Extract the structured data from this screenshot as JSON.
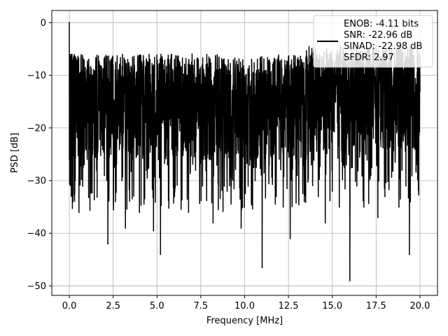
{
  "chart_data": {
    "type": "line",
    "title": "",
    "xlabel": "Frequency [MHz]",
    "ylabel": "PSD [dB]",
    "xlim": [
      -1.0,
      21.0
    ],
    "ylim": [
      -51.8,
      2.3
    ],
    "xticks": [
      0.0,
      2.5,
      5.0,
      7.5,
      10.0,
      12.5,
      15.0,
      17.5,
      20.0
    ],
    "xtick_labels": [
      "0.0",
      "2.5",
      "5.0",
      "7.5",
      "10.0",
      "12.5",
      "15.0",
      "17.5",
      "20.0"
    ],
    "yticks": [
      0,
      -10,
      -20,
      -30,
      -40,
      -50
    ],
    "ytick_labels": [
      "0",
      "−10",
      "−20",
      "−30",
      "−40",
      "−50"
    ],
    "grid": true,
    "legend": {
      "placement": "top-right",
      "lines": [
        "ENOB: -4.11 bits",
        "SNR: -22.96 dB",
        "SINAD: -22.98 dB",
        "SFDR: 2.97"
      ]
    },
    "series": [
      {
        "color": "#000000",
        "style": "noise-floor power spectral density trace",
        "x": [
          0.0,
          0.02,
          0.05,
          0.1,
          0.15,
          0.2,
          0.25,
          0.3,
          0.4,
          0.55,
          0.7,
          0.85,
          1.0,
          1.2,
          1.4,
          1.6,
          1.8,
          2.0,
          2.2,
          2.4,
          2.6,
          2.8,
          3.0,
          3.2,
          3.4,
          3.6,
          3.8,
          4.0,
          4.2,
          4.4,
          4.6,
          4.8,
          5.0,
          5.2,
          5.4,
          5.6,
          5.8,
          6.0,
          6.2,
          6.4,
          6.6,
          6.8,
          7.0,
          7.2,
          7.4,
          7.6,
          7.8,
          8.0,
          8.2,
          8.4,
          8.6,
          8.8,
          9.0,
          9.2,
          9.4,
          9.6,
          9.8,
          10.0,
          10.2,
          10.4,
          10.6,
          10.8,
          11.0,
          11.2,
          11.4,
          11.6,
          11.8,
          12.0,
          12.2,
          12.4,
          12.6,
          12.8,
          13.0,
          13.2,
          13.4,
          13.6,
          13.8,
          14.0,
          14.2,
          14.4,
          14.6,
          14.8,
          15.0,
          15.2,
          15.4,
          15.6,
          15.8,
          16.0,
          16.2,
          16.4,
          16.6,
          16.8,
          17.0,
          17.2,
          17.4,
          17.6,
          17.8,
          18.0,
          18.2,
          18.4,
          18.6,
          18.8,
          19.0,
          19.2,
          19.4,
          19.6,
          19.8,
          20.0
        ],
        "y": [
          0.0,
          -17.0,
          -8.0,
          -19.0,
          -6.0,
          -34.0,
          -12.0,
          -28.0,
          -9.0,
          -36.0,
          -11.0,
          -27.0,
          -9.0,
          -30.0,
          -10.0,
          -26.0,
          -12.0,
          -29.0,
          -42.0,
          -11.0,
          -27.0,
          -9.0,
          -30.0,
          -39.0,
          -8.0,
          -26.0,
          -12.0,
          -36.0,
          -9.0,
          -28.0,
          -7.0,
          -39.5,
          -10.0,
          -44.0,
          -9.0,
          -27.0,
          -8.0,
          -33.0,
          -11.0,
          -29.0,
          -9.0,
          -36.0,
          -6.0,
          -28.0,
          -10.0,
          -31.0,
          -8.0,
          -26.0,
          -38.0,
          -9.0,
          -28.0,
          -7.0,
          -32.0,
          -10.0,
          -27.0,
          -8.0,
          -39.0,
          -11.0,
          -31.0,
          -7.0,
          -30.0,
          -9.0,
          -46.5,
          -10.0,
          -27.0,
          -8.0,
          -33.0,
          -11.0,
          -35.0,
          -9.0,
          -41.0,
          -7.0,
          -29.0,
          -10.0,
          -34.0,
          -8.0,
          -27.0,
          -11.0,
          -33.0,
          -9.0,
          -38.0,
          -7.0,
          -32.0,
          -10.0,
          -35.0,
          -8.0,
          -27.0,
          -49.0,
          -10.0,
          -31.0,
          -9.0,
          -35.0,
          -7.0,
          -29.0,
          -11.0,
          -37.0,
          -9.0,
          -33.0,
          -10.0,
          -28.0,
          -8.0,
          -35.0,
          -11.0,
          -31.0,
          -44.0,
          -10.0,
          -27.0,
          -13.0
        ]
      }
    ]
  }
}
